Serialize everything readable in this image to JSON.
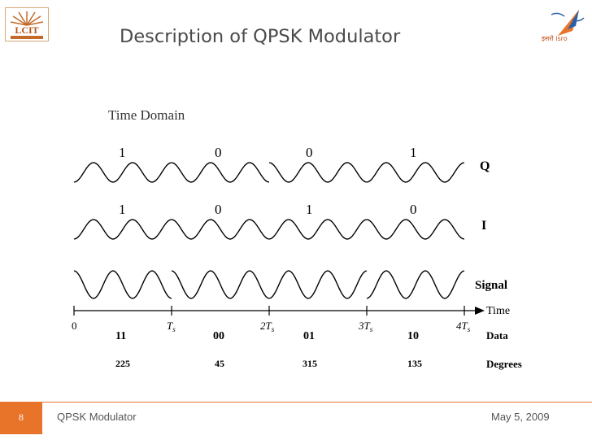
{
  "slide": {
    "title": "Description of QPSK Modulator",
    "subtitle": "Time Domain",
    "left_logo_text": "LCIT",
    "right_logo_text": "इसरो isro"
  },
  "waveforms": {
    "q": {
      "label": "Q",
      "bits": [
        "1",
        "0",
        "0",
        "1"
      ]
    },
    "i": {
      "label": "I",
      "bits": [
        "1",
        "0",
        "1",
        "0"
      ]
    },
    "signal": {
      "label": "Signal"
    }
  },
  "time_axis": {
    "label": "Time",
    "tick_labels": [
      "0",
      "T",
      "2T",
      "3T",
      "4T"
    ],
    "tick_subscript": "s"
  },
  "data_row": {
    "label": "Data",
    "values": [
      "11",
      "00",
      "01",
      "10"
    ]
  },
  "degrees_row": {
    "label": "Degrees",
    "values": [
      "225",
      "45",
      "315",
      "135"
    ]
  },
  "footer": {
    "page_number": "8",
    "title": "QPSK Modulator",
    "date": "May 5, 2009"
  },
  "colors": {
    "accent": "#e8742a",
    "title": "#4a4a4a"
  }
}
